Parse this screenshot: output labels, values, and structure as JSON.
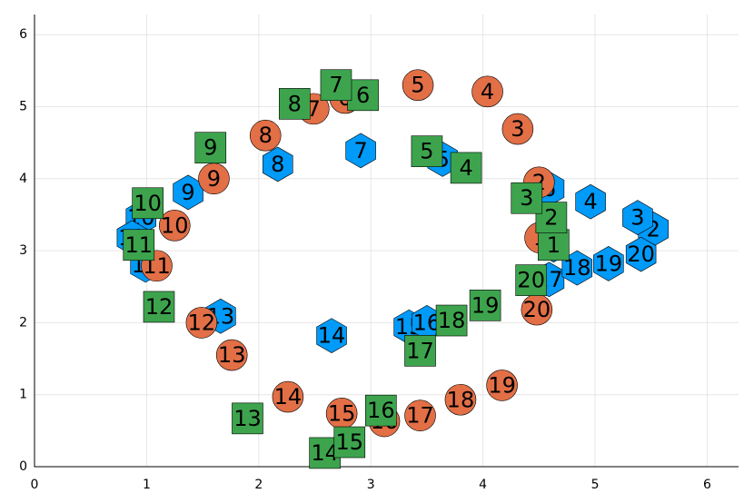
{
  "chart_data": {
    "type": "scatter",
    "xlim": [
      0,
      6.28
    ],
    "ylim": [
      0,
      6.28
    ],
    "xticks": [
      0,
      1,
      2,
      3,
      4,
      5,
      6
    ],
    "yticks": [
      0,
      1,
      2,
      3,
      4,
      5,
      6
    ],
    "grid": true,
    "series": [
      {
        "color": "#009af9",
        "marker": "hexagon",
        "x": [
          4.63,
          5.52,
          5.38,
          4.96,
          3.64,
          4.59,
          2.91,
          2.17,
          1.37,
          0.95,
          0.99,
          0.87,
          1.66,
          2.65,
          3.34,
          3.5,
          4.59,
          4.84,
          5.12,
          5.41
        ],
        "values": [
          3.08,
          3.3,
          3.46,
          3.68,
          4.27,
          3.86,
          4.39,
          4.2,
          3.81,
          3.46,
          2.8,
          3.18,
          2.09,
          1.82,
          1.94,
          2.0,
          2.6,
          2.76,
          2.82,
          2.95
        ],
        "labels": [
          1,
          2,
          3,
          4,
          5,
          6,
          7,
          8,
          9,
          10,
          11,
          12,
          13,
          14,
          15,
          16,
          17,
          18,
          19,
          20
        ]
      },
      {
        "color": "#e26f46",
        "marker": "circle",
        "x": [
          4.51,
          4.5,
          4.31,
          4.04,
          3.42,
          2.77,
          2.49,
          2.06,
          1.6,
          1.25,
          1.09,
          1.49,
          1.76,
          2.26,
          2.74,
          3.12,
          3.44,
          3.8,
          4.17,
          4.48
        ],
        "values": [
          3.18,
          3.95,
          4.69,
          5.21,
          5.3,
          5.12,
          4.97,
          4.6,
          4.0,
          3.35,
          2.79,
          2.0,
          1.55,
          0.97,
          0.74,
          0.63,
          0.71,
          0.93,
          1.13,
          2.18
        ],
        "labels": [
          1,
          2,
          3,
          4,
          5,
          6,
          7,
          8,
          9,
          10,
          11,
          12,
          13,
          14,
          15,
          16,
          17,
          18,
          19,
          20
        ]
      },
      {
        "color": "#3da44d",
        "marker": "square",
        "x": [
          4.63,
          4.61,
          4.39,
          3.85,
          3.5,
          2.93,
          2.69,
          2.32,
          1.57,
          1.01,
          0.93,
          1.11,
          1.9,
          2.59,
          2.81,
          3.09,
          3.44,
          3.72,
          4.02,
          4.43
        ],
        "values": [
          3.08,
          3.46,
          3.73,
          4.15,
          4.38,
          5.16,
          5.3,
          5.04,
          4.43,
          3.66,
          3.08,
          2.22,
          0.67,
          0.19,
          0.34,
          0.78,
          1.61,
          2.03,
          2.24,
          2.59
        ],
        "labels": [
          1,
          2,
          3,
          4,
          5,
          6,
          7,
          8,
          9,
          10,
          11,
          12,
          13,
          14,
          15,
          16,
          17,
          18,
          19,
          20
        ]
      }
    ]
  }
}
